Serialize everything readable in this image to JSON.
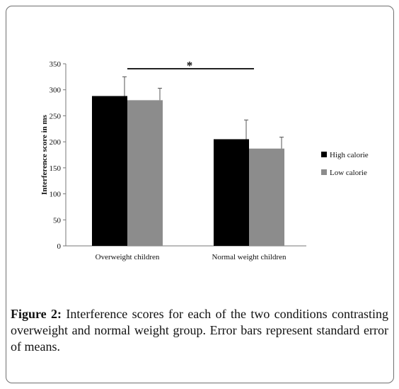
{
  "chart_data": {
    "type": "bar",
    "categories": [
      "Overweight children",
      "Normal weight children"
    ],
    "series": [
      {
        "name": "High calorie",
        "values": [
          288,
          205
        ],
        "errors": [
          37,
          37
        ],
        "color": "#000000"
      },
      {
        "name": "Low calorie",
        "values": [
          280,
          187
        ],
        "errors": [
          23,
          22
        ],
        "color": "#8c8c8c"
      }
    ],
    "ylabel": "Interference score in ms",
    "xlabel": "",
    "ylim": [
      0,
      350
    ],
    "yticks": [
      0,
      50,
      100,
      150,
      200,
      250,
      300,
      350
    ],
    "grid": false,
    "legend_position": "right",
    "annotation": "*"
  },
  "caption": {
    "label": "Figure 2:",
    "text": " Interference scores for each of the two conditions contrasting overweight and normal weight group. Error bars represent standard error of means."
  }
}
